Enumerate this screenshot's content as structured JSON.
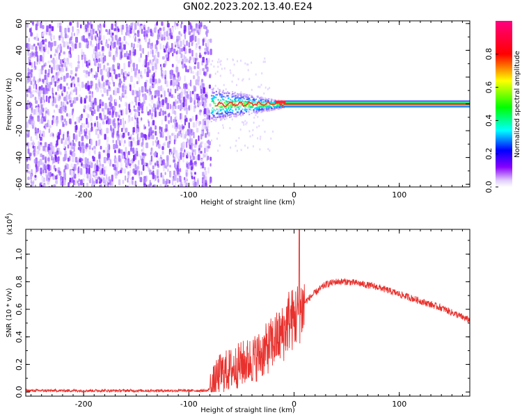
{
  "title": "GN02.2023.202.13.40.E24",
  "chart_data": [
    {
      "type": "heatmap",
      "panel": "spectrogram",
      "xlabel": "Height of straight line (km)",
      "ylabel": "Frequency (Hz)",
      "xlim": [
        -255,
        167
      ],
      "ylim": [
        -62,
        62
      ],
      "x_ticks": [
        "-200",
        "-100",
        "0",
        "100"
      ],
      "y_ticks": [
        "-60",
        "-40",
        "-20",
        "0",
        "20",
        "40",
        "60"
      ],
      "noise_region": [
        -255,
        -80
      ],
      "signal_line_start": -10,
      "signal_frequency": 0,
      "colorbar": {
        "label": "Normalized spectral amplitude",
        "range": [
          0,
          1
        ],
        "ticks": [
          "0.0",
          "0.2",
          "0.4",
          "0.6",
          "0.8"
        ]
      }
    },
    {
      "type": "line",
      "panel": "snr",
      "xlabel": "Height of straight line (km)",
      "ylabel": "SNR (10 * v/v)",
      "scale_label": "(x10",
      "scale_exp": "4",
      "scale_close": ")",
      "xlim": [
        -255,
        167
      ],
      "ylim": [
        -0.03,
        1.18
      ],
      "x_ticks": [
        "-200",
        "-100",
        "0",
        "100"
      ],
      "y_ticks": [
        "0.0",
        "0.2",
        "0.4",
        "0.6",
        "0.8",
        "1.0"
      ],
      "series": [
        {
          "color": "#e8312d",
          "x": [
            -255,
            -200,
            -150,
            -100,
            -82,
            -78,
            -70,
            -60,
            -50,
            -40,
            -30,
            -20,
            -10,
            -5,
            0,
            5,
            10,
            20,
            30,
            40,
            50,
            60,
            80,
            100,
            120,
            140,
            167
          ],
          "y": [
            0.01,
            0.01,
            0.01,
            0.01,
            0.01,
            0.05,
            0.15,
            0.18,
            0.22,
            0.25,
            0.3,
            0.38,
            0.45,
            0.55,
            0.55,
            0.62,
            0.65,
            0.72,
            0.78,
            0.8,
            0.8,
            0.79,
            0.76,
            0.71,
            0.66,
            0.61,
            0.52
          ]
        }
      ]
    }
  ]
}
